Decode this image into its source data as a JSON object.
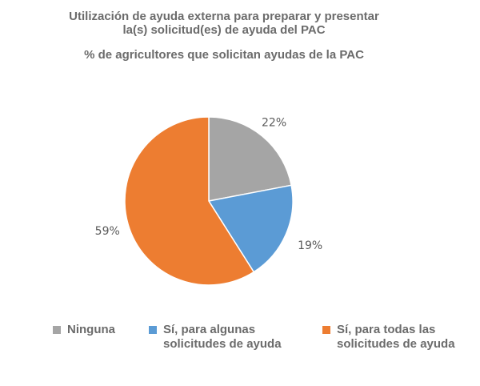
{
  "chart_data": {
    "type": "pie",
    "title": "Utilización de ayuda externa para preparar y presentar la(s) solicitud(es) de ayuda del PAC",
    "subtitle": "% de agricultores que solicitan ayudas de la PAC",
    "slices": [
      {
        "name": "Ninguna",
        "value": 22,
        "label": "22%",
        "color": "#a5a5a5"
      },
      {
        "name": "Sí, para algunas solicitudes de ayuda",
        "value": 19,
        "label": "19%",
        "color": "#5b9bd5"
      },
      {
        "name": "Sí, para todas las solicitudes de ayuda",
        "value": 59,
        "label": "59%",
        "color": "#ed7d31"
      }
    ],
    "legend_position": "bottom"
  },
  "legend": [
    {
      "line1": "Ninguna",
      "line2": ""
    },
    {
      "line1": "Sí, para algunas",
      "line2": "solicitudes de ayuda"
    },
    {
      "line1": "Sí, para todas las",
      "line2": "solicitudes de ayuda"
    }
  ]
}
